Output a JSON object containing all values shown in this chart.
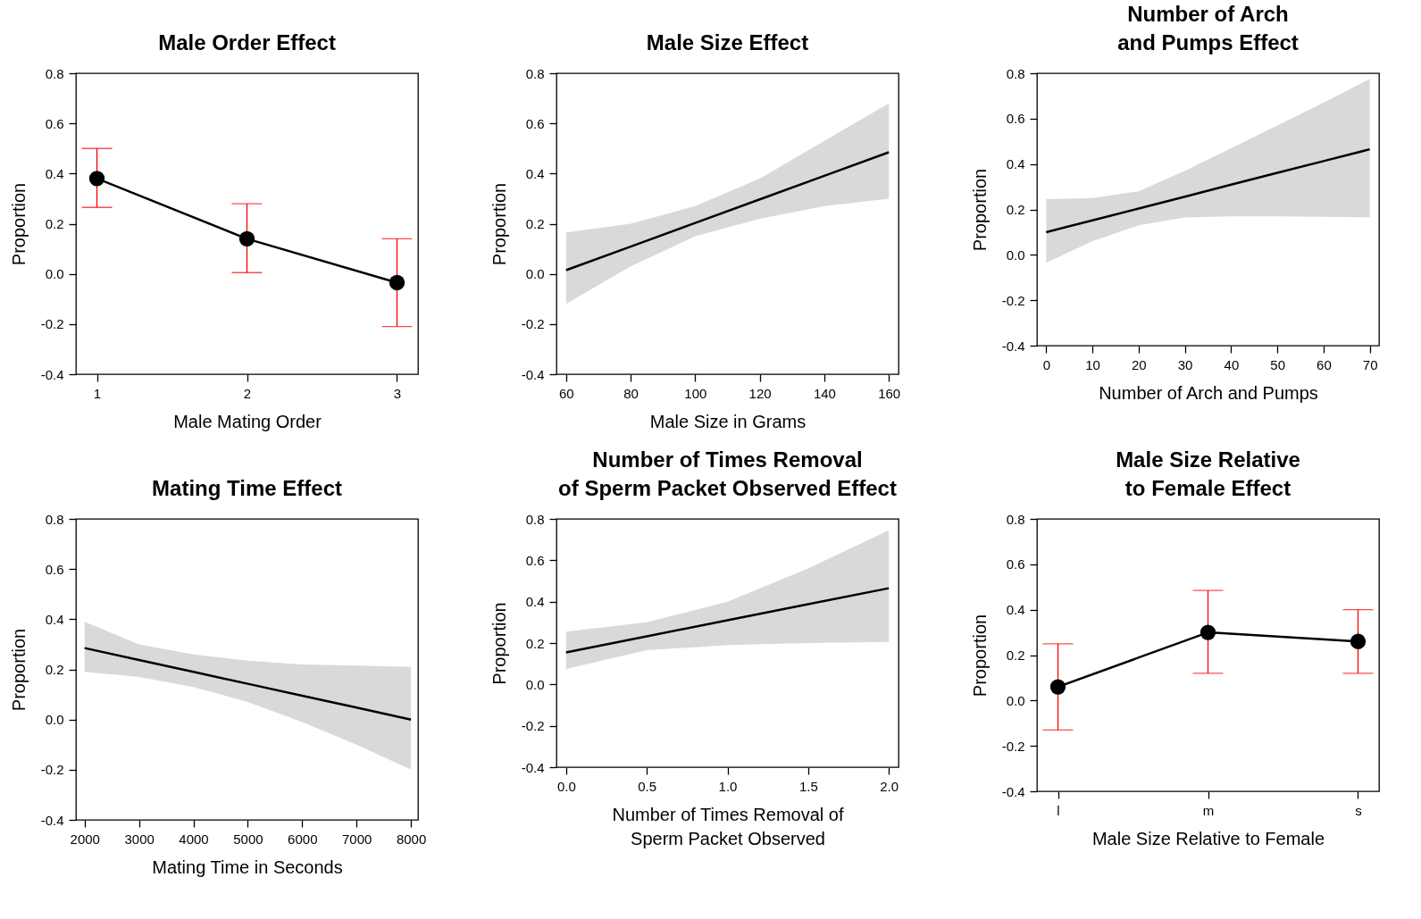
{
  "chart_data": [
    {
      "type": "line",
      "title": "Male Order Effect",
      "xlabel": "Male Mating Order",
      "ylabel": "Proportion",
      "x": [
        1,
        2,
        3
      ],
      "xlim": [
        0.86,
        3.14
      ],
      "xticks": [
        1,
        2,
        3
      ],
      "ylim": [
        -0.4,
        0.8
      ],
      "yticks": [
        {
          "value": -0.4,
          "label": "-0.4"
        },
        {
          "value": -0.2,
          "label": "-0.2"
        },
        {
          "value": 0,
          "label": "0.0"
        },
        0.2,
        0.4,
        0.6,
        0.8
      ],
      "marker": "circle",
      "series": [
        {
          "color": "#000000",
          "values": [
            0.38,
            0.14,
            -0.035
          ],
          "errors": [
            [
              0.265,
              0.5
            ],
            [
              0.005,
              0.28
            ],
            [
              -0.21,
              0.14
            ]
          ]
        }
      ]
    },
    {
      "type": "line",
      "title": "Male Size Effect",
      "xlabel": "Male Size in Grams",
      "ylabel": "Proportion",
      "x": [
        60,
        80,
        100,
        120,
        140,
        160
      ],
      "xlim": [
        57,
        163
      ],
      "xticks": [
        60,
        80,
        100,
        120,
        140,
        160
      ],
      "ylim": [
        -0.4,
        0.8
      ],
      "yticks": [
        {
          "value": -0.4,
          "label": "-0.4"
        },
        {
          "value": -0.2,
          "label": "-0.2"
        },
        {
          "value": 0,
          "label": "0.0"
        },
        0.2,
        0.4,
        0.6,
        0.8
      ],
      "series": [
        {
          "color": "#000000",
          "values": [
            0.015,
            0.109,
            0.203,
            0.297,
            0.391,
            0.485
          ],
          "lower": [
            -0.12,
            0.03,
            0.15,
            0.22,
            0.27,
            0.3
          ],
          "upper": [
            0.165,
            0.2,
            0.27,
            0.38,
            0.53,
            0.68
          ]
        }
      ]
    },
    {
      "type": "line",
      "title": "Number of Arch\nand Pumps Effect",
      "xlabel": "Number of Arch and Pumps",
      "ylabel": "Proportion",
      "x": [
        0,
        10,
        20,
        30,
        40,
        50,
        60,
        70
      ],
      "xlim": [
        -2,
        72
      ],
      "xticks": [
        0,
        10,
        20,
        30,
        40,
        50,
        60,
        70
      ],
      "ylim": [
        -0.4,
        0.8
      ],
      "yticks": [
        {
          "value": -0.4,
          "label": "-0.4"
        },
        {
          "value": -0.2,
          "label": "-0.2"
        },
        {
          "value": 0,
          "label": "0.0"
        },
        0.2,
        0.4,
        0.6,
        0.8
      ],
      "series": [
        {
          "color": "#000000",
          "values": [
            0.1,
            0.152,
            0.204,
            0.256,
            0.309,
            0.361,
            0.413,
            0.465
          ],
          "lower": [
            -0.035,
            0.06,
            0.13,
            0.165,
            0.17,
            0.17,
            0.168,
            0.165
          ],
          "upper": [
            0.245,
            0.25,
            0.28,
            0.37,
            0.47,
            0.57,
            0.67,
            0.775
          ]
        }
      ]
    },
    {
      "type": "line",
      "title": "Mating Time Effect",
      "xlabel": "Mating Time in Seconds",
      "ylabel": "Proportion",
      "x": [
        2000,
        3000,
        4000,
        5000,
        6000,
        7000,
        8000
      ],
      "xlim": [
        1840,
        8130
      ],
      "xticks": [
        2000,
        3000,
        4000,
        5000,
        6000,
        7000,
        8000
      ],
      "ylim": [
        -0.4,
        0.8
      ],
      "yticks": [
        {
          "value": -0.4,
          "label": "-0.4"
        },
        {
          "value": -0.2,
          "label": "-0.2"
        },
        {
          "value": 0,
          "label": "0.0"
        },
        0.2,
        0.4,
        0.6,
        0.8
      ],
      "series": [
        {
          "color": "#000000",
          "values": [
            0.285,
            0.2375,
            0.19,
            0.1425,
            0.095,
            0.0475,
            0
          ],
          "lower": [
            0.19,
            0.17,
            0.13,
            0.07,
            -0.01,
            -0.1,
            -0.2
          ],
          "upper": [
            0.39,
            0.3,
            0.26,
            0.235,
            0.22,
            0.215,
            0.21
          ]
        }
      ]
    },
    {
      "type": "line",
      "title": "Number of Times Removal\nof Sperm Packet Observed Effect",
      "xlabel": "Number of Times Removal of\nSperm Packet Observed",
      "ylabel": "Proportion",
      "x": [
        0,
        0.5,
        1,
        1.5,
        2
      ],
      "xlim": [
        -0.06,
        2.06
      ],
      "xticks": [
        {
          "value": 0,
          "label": "0.0"
        },
        0.5,
        {
          "value": 1,
          "label": "1.0"
        },
        1.5,
        {
          "value": 2,
          "label": "2.0"
        }
      ],
      "ylim": [
        -0.4,
        0.8
      ],
      "yticks": [
        {
          "value": -0.4,
          "label": "-0.4"
        },
        {
          "value": -0.2,
          "label": "-0.2"
        },
        {
          "value": 0,
          "label": "0.0"
        },
        0.2,
        0.4,
        0.6,
        0.8
      ],
      "series": [
        {
          "color": "#000000",
          "values": [
            0.155,
            0.2325,
            0.31,
            0.3875,
            0.465
          ],
          "lower": [
            0.075,
            0.165,
            0.19,
            0.2,
            0.205
          ],
          "upper": [
            0.255,
            0.3,
            0.4,
            0.56,
            0.745
          ]
        }
      ]
    },
    {
      "type": "line",
      "title": "Male Size Relative\nto Female Effect",
      "xlabel": "Male Size Relative to Female",
      "ylabel": "Proportion",
      "categories": [
        "l",
        "m",
        "s"
      ],
      "ylim": [
        -0.4,
        0.8
      ],
      "yticks": [
        {
          "value": -0.4,
          "label": "-0.4"
        },
        {
          "value": -0.2,
          "label": "-0.2"
        },
        {
          "value": 0,
          "label": "0.0"
        },
        0.2,
        0.4,
        0.6,
        0.8
      ],
      "marker": "circle",
      "series": [
        {
          "color": "#000000",
          "values": [
            0.06,
            0.3,
            0.26
          ],
          "errors": [
            [
              -0.13,
              0.25
            ],
            [
              0.12,
              0.485
            ],
            [
              0.12,
              0.4
            ]
          ]
        }
      ]
    }
  ]
}
